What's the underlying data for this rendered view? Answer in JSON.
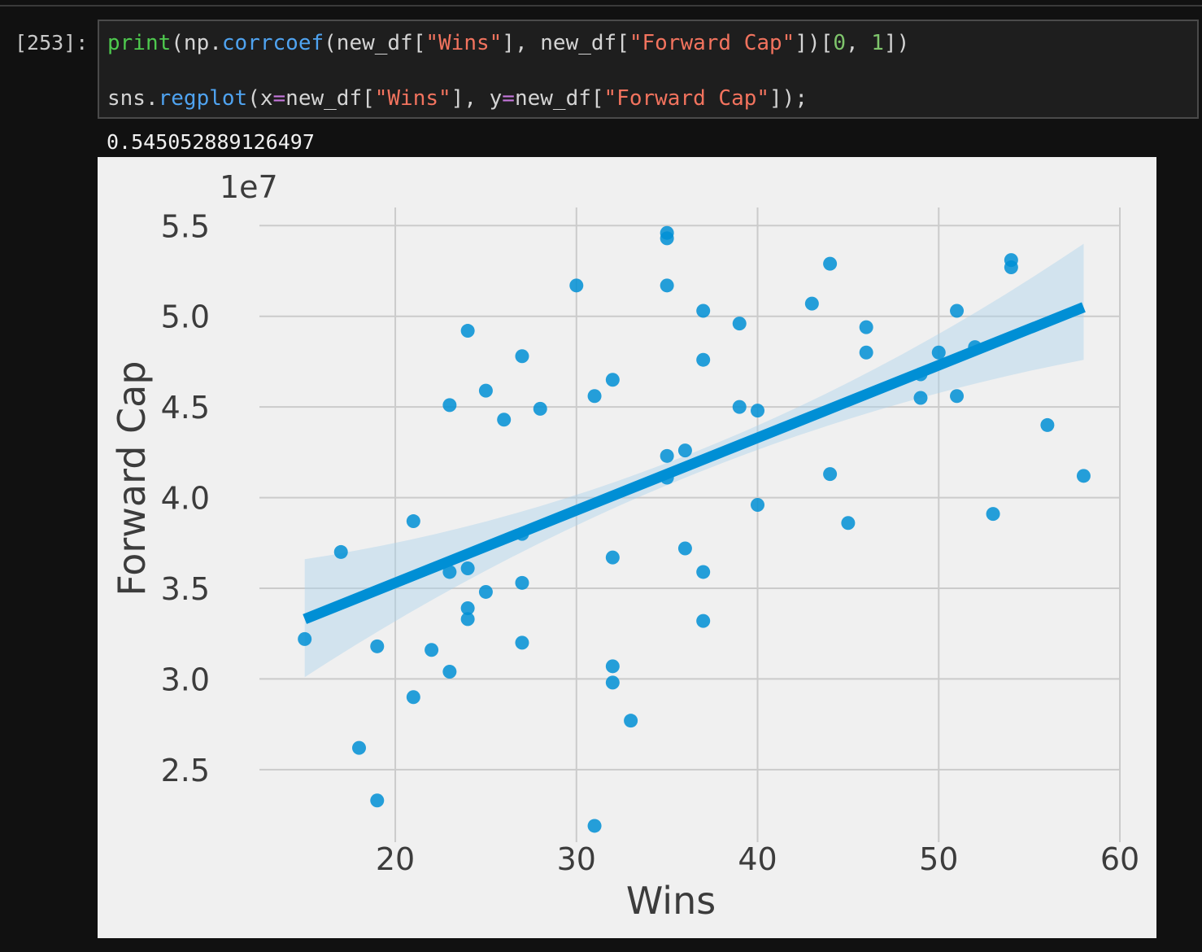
{
  "notebook": {
    "prompt": "[253]:",
    "code_tokens_line1": [
      "print",
      "(np.",
      "corrcoef",
      "(new_df[",
      "\"Wins\"",
      "], new_df[",
      "\"Forward Cap\"",
      "])[",
      "0",
      ", ",
      "1",
      "])"
    ],
    "code_tokens_line2": [
      "sns.",
      "regplot",
      "(x",
      "=",
      "new_df[",
      "\"Wins\"",
      "], y",
      "=",
      "new_df[",
      "\"Forward Cap\"",
      "]);"
    ],
    "output_value": "0.545052889126497"
  },
  "chart_data": {
    "type": "scatter",
    "title": "",
    "xlabel": "Wins",
    "ylabel": "Forward Cap",
    "y_offset_label": "1e7",
    "xlim": [
      12.5,
      60.0
    ],
    "ylim": [
      2.1,
      5.6
    ],
    "xticks": [
      20,
      30,
      40,
      50,
      60
    ],
    "xtick_labels": [
      "20",
      "30",
      "40",
      "50",
      "60"
    ],
    "yticks": [
      2.5,
      3.0,
      3.5,
      4.0,
      4.5,
      5.0,
      5.5
    ],
    "ytick_labels": [
      "2.5",
      "3.0",
      "3.5",
      "4.0",
      "4.5",
      "5.0",
      "5.5"
    ],
    "grid": true,
    "point_color": "#008fd5",
    "line_color": "#008fd5",
    "ci_color": "#aed3ea",
    "background": "#f0f0f0",
    "grid_color": "#cbcbcb",
    "regression": {
      "x_range": [
        15,
        58
      ],
      "y_start": 3.33,
      "y_end": 5.05,
      "ci_lower": [
        3.01,
        4.76
      ],
      "ci_upper": [
        3.66,
        5.4
      ]
    },
    "points": [
      [
        15,
        3.22
      ],
      [
        17,
        3.7
      ],
      [
        18,
        2.62
      ],
      [
        19,
        3.18
      ],
      [
        19,
        2.33
      ],
      [
        21,
        3.87
      ],
      [
        21,
        2.9
      ],
      [
        22,
        3.16
      ],
      [
        23,
        4.51
      ],
      [
        23,
        3.59
      ],
      [
        23,
        3.04
      ],
      [
        24,
        4.92
      ],
      [
        24,
        3.61
      ],
      [
        24,
        3.39
      ],
      [
        24,
        3.33
      ],
      [
        25,
        4.59
      ],
      [
        25,
        3.48
      ],
      [
        26,
        4.43
      ],
      [
        27,
        4.78
      ],
      [
        27,
        3.8
      ],
      [
        27,
        3.53
      ],
      [
        27,
        3.2
      ],
      [
        28,
        4.49
      ],
      [
        30,
        5.17
      ],
      [
        31,
        4.56
      ],
      [
        31,
        2.19
      ],
      [
        32,
        4.65
      ],
      [
        32,
        3.67
      ],
      [
        32,
        3.07
      ],
      [
        32,
        2.98
      ],
      [
        33,
        2.77
      ],
      [
        35,
        5.46
      ],
      [
        35,
        5.43
      ],
      [
        35,
        5.17
      ],
      [
        35,
        4.23
      ],
      [
        35,
        4.11
      ],
      [
        36,
        4.26
      ],
      [
        36,
        3.72
      ],
      [
        37,
        5.03
      ],
      [
        37,
        4.76
      ],
      [
        37,
        3.59
      ],
      [
        37,
        3.32
      ],
      [
        39,
        4.96
      ],
      [
        39,
        4.5
      ],
      [
        40,
        4.48
      ],
      [
        40,
        3.96
      ],
      [
        43,
        5.07
      ],
      [
        44,
        5.29
      ],
      [
        44,
        4.13
      ],
      [
        45,
        3.86
      ],
      [
        46,
        4.94
      ],
      [
        46,
        4.8
      ],
      [
        49,
        4.68
      ],
      [
        49,
        4.55
      ],
      [
        50,
        4.8
      ],
      [
        51,
        5.03
      ],
      [
        51,
        4.56
      ],
      [
        52,
        4.83
      ],
      [
        53,
        3.91
      ],
      [
        54,
        5.31
      ],
      [
        54,
        5.27
      ],
      [
        56,
        4.4
      ],
      [
        58,
        4.12
      ]
    ]
  }
}
